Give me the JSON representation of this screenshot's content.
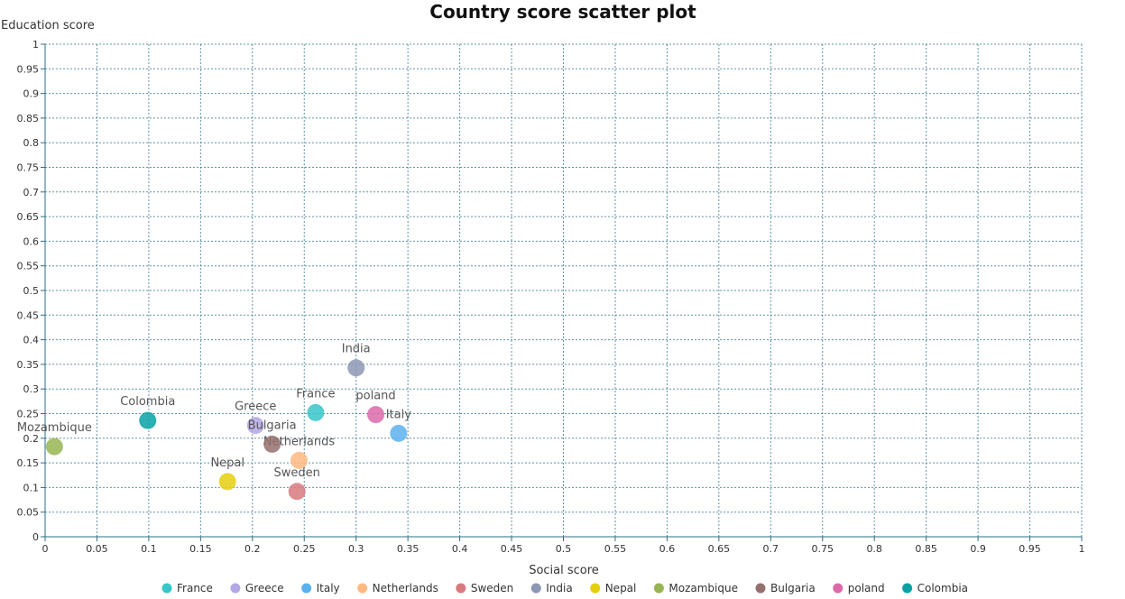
{
  "chart_data": {
    "type": "scatter",
    "title": "Country score scatter plot",
    "xlabel": "Social score",
    "ylabel": "Education score",
    "xlim": [
      0,
      1
    ],
    "ylim": [
      0,
      1
    ],
    "tick_step": 0.05,
    "grid": true,
    "legend_position": "bottom",
    "series": [
      {
        "name": "France",
        "color": "#37c6c9",
        "points": [
          {
            "x": 0.261,
            "y": 0.252
          }
        ]
      },
      {
        "name": "Greece",
        "color": "#b4a7e5",
        "points": [
          {
            "x": 0.203,
            "y": 0.226
          }
        ]
      },
      {
        "name": "Italy",
        "color": "#5ab1ef",
        "points": [
          {
            "x": 0.341,
            "y": 0.21
          }
        ]
      },
      {
        "name": "Netherlands",
        "color": "#ffb980",
        "points": [
          {
            "x": 0.245,
            "y": 0.155
          }
        ]
      },
      {
        "name": "Sweden",
        "color": "#d87a80",
        "points": [
          {
            "x": 0.243,
            "y": 0.092
          }
        ]
      },
      {
        "name": "India",
        "color": "#8d98b3",
        "points": [
          {
            "x": 0.3,
            "y": 0.343
          }
        ]
      },
      {
        "name": "Nepal",
        "color": "#e5cf0d",
        "points": [
          {
            "x": 0.176,
            "y": 0.112
          }
        ]
      },
      {
        "name": "Mozambique",
        "color": "#97b552",
        "points": [
          {
            "x": 0.009,
            "y": 0.183
          }
        ]
      },
      {
        "name": "Bulgaria",
        "color": "#95706d",
        "points": [
          {
            "x": 0.219,
            "y": 0.188
          }
        ]
      },
      {
        "name": "poland",
        "color": "#dc69aa",
        "points": [
          {
            "x": 0.319,
            "y": 0.248
          }
        ]
      },
      {
        "name": "Colombia",
        "color": "#07a2a4",
        "points": [
          {
            "x": 0.099,
            "y": 0.236
          }
        ]
      }
    ]
  }
}
